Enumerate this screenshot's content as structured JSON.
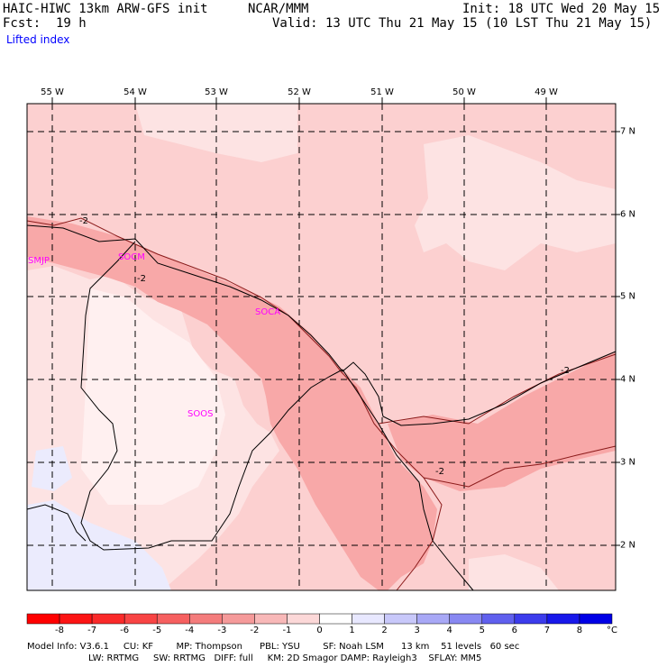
{
  "header": {
    "model": "HAIC-HIWC 13km ARW-GFS init",
    "org": "NCAR/MMM",
    "init": "Init: 18 UTC Wed 20 May 15",
    "fcst_label": "Fcst:",
    "fcst_value": "19 h",
    "valid": "Valid: 13 UTC Thu 21 May 15 (10 LST Thu 21 May 15)",
    "field": "Lifted index"
  },
  "map": {
    "longitude_labels": [
      "55 W",
      "54 W",
      "53 W",
      "52 W",
      "51 W",
      "50 W",
      "49 W"
    ],
    "latitude_labels": [
      "7 N",
      "6 N",
      "5 N",
      "4 N",
      "3 N",
      "2 N"
    ],
    "stations": [
      "SMJP",
      "SOCM",
      "SOCA",
      "SOOS"
    ],
    "contour_labels": [
      "-2",
      "-2",
      "-2",
      "-2"
    ],
    "colors": {
      "land_light": "#fde3e3",
      "sea_pink": "#fcd0d0",
      "strong_pink": "#f8a8a8",
      "very_light": "#fff0f0",
      "lavender": "#ebebfd",
      "station_text": "#ff00ff",
      "grid": "#000000"
    }
  },
  "colorbar": {
    "ticks": [
      "-8",
      "-7",
      "-6",
      "-5",
      "-4",
      "-3",
      "-2",
      "-1",
      "0",
      "1",
      "2",
      "3",
      "4",
      "5",
      "6",
      "7",
      "8"
    ],
    "unit": "°C",
    "colors": [
      "#ff0000",
      "#fc1414",
      "#fa2a2a",
      "#f84444",
      "#f66060",
      "#f47c7c",
      "#f59a9a",
      "#f8b8b8",
      "#fcd8d8",
      "#ffffff",
      "#e8e8ff",
      "#c8c8fa",
      "#a8a8f6",
      "#8888f2",
      "#6060ee",
      "#3c3cec",
      "#1818ea",
      "#0000e6"
    ]
  },
  "footer": {
    "line1": "Model Info: V3.6.1     CU: KF        MP: Thompson      PBL: YSU        SF: Noah LSM      13 km    51 levels   60 sec",
    "line2": "LW: RRTMG     SW: RRTMG   DIFF: full     KM: 2D Smagor DAMP: Rayleigh3    SFLAY: MM5"
  }
}
